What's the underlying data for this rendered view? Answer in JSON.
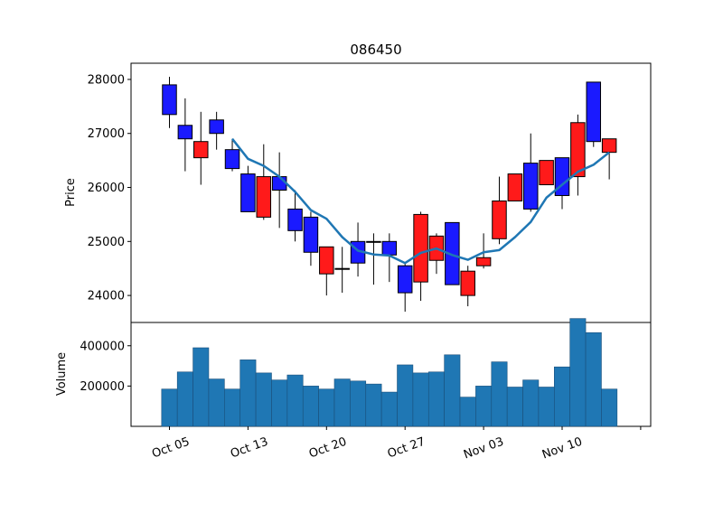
{
  "chart_data": {
    "type": "candlestick",
    "title": "086450",
    "price_panel": {
      "ylabel": "Price",
      "ylim": [
        23500,
        28300
      ],
      "yticks": [
        24000,
        25000,
        26000,
        27000,
        28000
      ],
      "moving_average": true
    },
    "volume_panel": {
      "ylabel": "Volume",
      "ylim": [
        0,
        500000
      ],
      "yticks": [
        200000,
        400000
      ]
    },
    "xticks": [
      "Oct 05",
      "Oct 13",
      "Oct 20",
      "Oct 27",
      "Nov 03",
      "Nov 10"
    ],
    "colors": {
      "up": "#ff1a1a",
      "down": "#1a1aff",
      "ma": "#1f77b4",
      "volume": "#1f77b4"
    },
    "candles": [
      {
        "o": 27350,
        "h": 28050,
        "l": 27100,
        "c": 27900,
        "v": 185000,
        "t": "down"
      },
      {
        "o": 26900,
        "h": 27650,
        "l": 26300,
        "c": 27150,
        "v": 270000,
        "t": "down"
      },
      {
        "o": 26850,
        "h": 27400,
        "l": 26050,
        "c": 26550,
        "v": 390000,
        "t": "up"
      },
      {
        "o": 27000,
        "h": 27400,
        "l": 26700,
        "c": 27250,
        "v": 235000,
        "t": "down"
      },
      {
        "o": 26350,
        "h": 26900,
        "l": 26300,
        "c": 26700,
        "v": 185000,
        "t": "down"
      },
      {
        "o": 25550,
        "h": 26400,
        "l": 25550,
        "c": 26250,
        "v": 330000,
        "t": "down"
      },
      {
        "o": 26200,
        "h": 26800,
        "l": 25400,
        "c": 25450,
        "v": 265000,
        "t": "up"
      },
      {
        "o": 25950,
        "h": 26650,
        "l": 25250,
        "c": 26200,
        "v": 230000,
        "t": "down"
      },
      {
        "o": 25200,
        "h": 25950,
        "l": 25000,
        "c": 25600,
        "v": 255000,
        "t": "down"
      },
      {
        "o": 24800,
        "h": 25550,
        "l": 24550,
        "c": 25450,
        "v": 200000,
        "t": "down"
      },
      {
        "o": 24900,
        "h": 24900,
        "l": 24000,
        "c": 24400,
        "v": 185000,
        "t": "up"
      },
      {
        "o": 24500,
        "h": 24900,
        "l": 24050,
        "c": 24500,
        "v": 235000,
        "t": "up"
      },
      {
        "o": 24600,
        "h": 25350,
        "l": 24350,
        "c": 25000,
        "v": 225000,
        "t": "down"
      },
      {
        "o": 25000,
        "h": 25150,
        "l": 24200,
        "c": 25000,
        "v": 210000,
        "t": "up"
      },
      {
        "o": 24750,
        "h": 25150,
        "l": 24250,
        "c": 25000,
        "v": 170000,
        "t": "down"
      },
      {
        "o": 24050,
        "h": 24600,
        "l": 23700,
        "c": 24550,
        "v": 305000,
        "t": "down"
      },
      {
        "o": 25500,
        "h": 25550,
        "l": 23900,
        "c": 24250,
        "v": 265000,
        "t": "up"
      },
      {
        "o": 25100,
        "h": 25150,
        "l": 24400,
        "c": 24650,
        "v": 270000,
        "t": "up"
      },
      {
        "o": 24200,
        "h": 25350,
        "l": 24200,
        "c": 25350,
        "v": 355000,
        "t": "down"
      },
      {
        "o": 24450,
        "h": 24550,
        "l": 23800,
        "c": 24000,
        "v": 145000,
        "t": "up"
      },
      {
        "o": 24700,
        "h": 25150,
        "l": 24500,
        "c": 24550,
        "v": 200000,
        "t": "up"
      },
      {
        "o": 25750,
        "h": 26200,
        "l": 24950,
        "c": 25050,
        "v": 320000,
        "t": "up"
      },
      {
        "o": 26250,
        "h": 26250,
        "l": 25750,
        "c": 25750,
        "v": 195000,
        "t": "up"
      },
      {
        "o": 25600,
        "h": 27000,
        "l": 25550,
        "c": 26450,
        "v": 230000,
        "t": "down"
      },
      {
        "o": 26500,
        "h": 26500,
        "l": 26050,
        "c": 26050,
        "v": 195000,
        "t": "up"
      },
      {
        "o": 25850,
        "h": 26550,
        "l": 25600,
        "c": 26550,
        "v": 295000,
        "t": "down"
      },
      {
        "o": 27200,
        "h": 27350,
        "l": 25850,
        "c": 26200,
        "v": 535000,
        "t": "up"
      },
      {
        "o": 26850,
        "h": 27950,
        "l": 26750,
        "c": 27950,
        "v": 465000,
        "t": "down"
      },
      {
        "o": 26900,
        "h": 26900,
        "l": 26150,
        "c": 26650,
        "v": 185000,
        "t": "up"
      }
    ],
    "ma_values": [
      null,
      null,
      null,
      null,
      26900,
      26530,
      26400,
      26200,
      25920,
      25580,
      25420,
      25080,
      24830,
      24760,
      24740,
      24600,
      24790,
      24870,
      24750,
      24660,
      24800,
      24840,
      25080,
      25360,
      25810,
      26050,
      26290,
      26420,
      26650
    ]
  }
}
